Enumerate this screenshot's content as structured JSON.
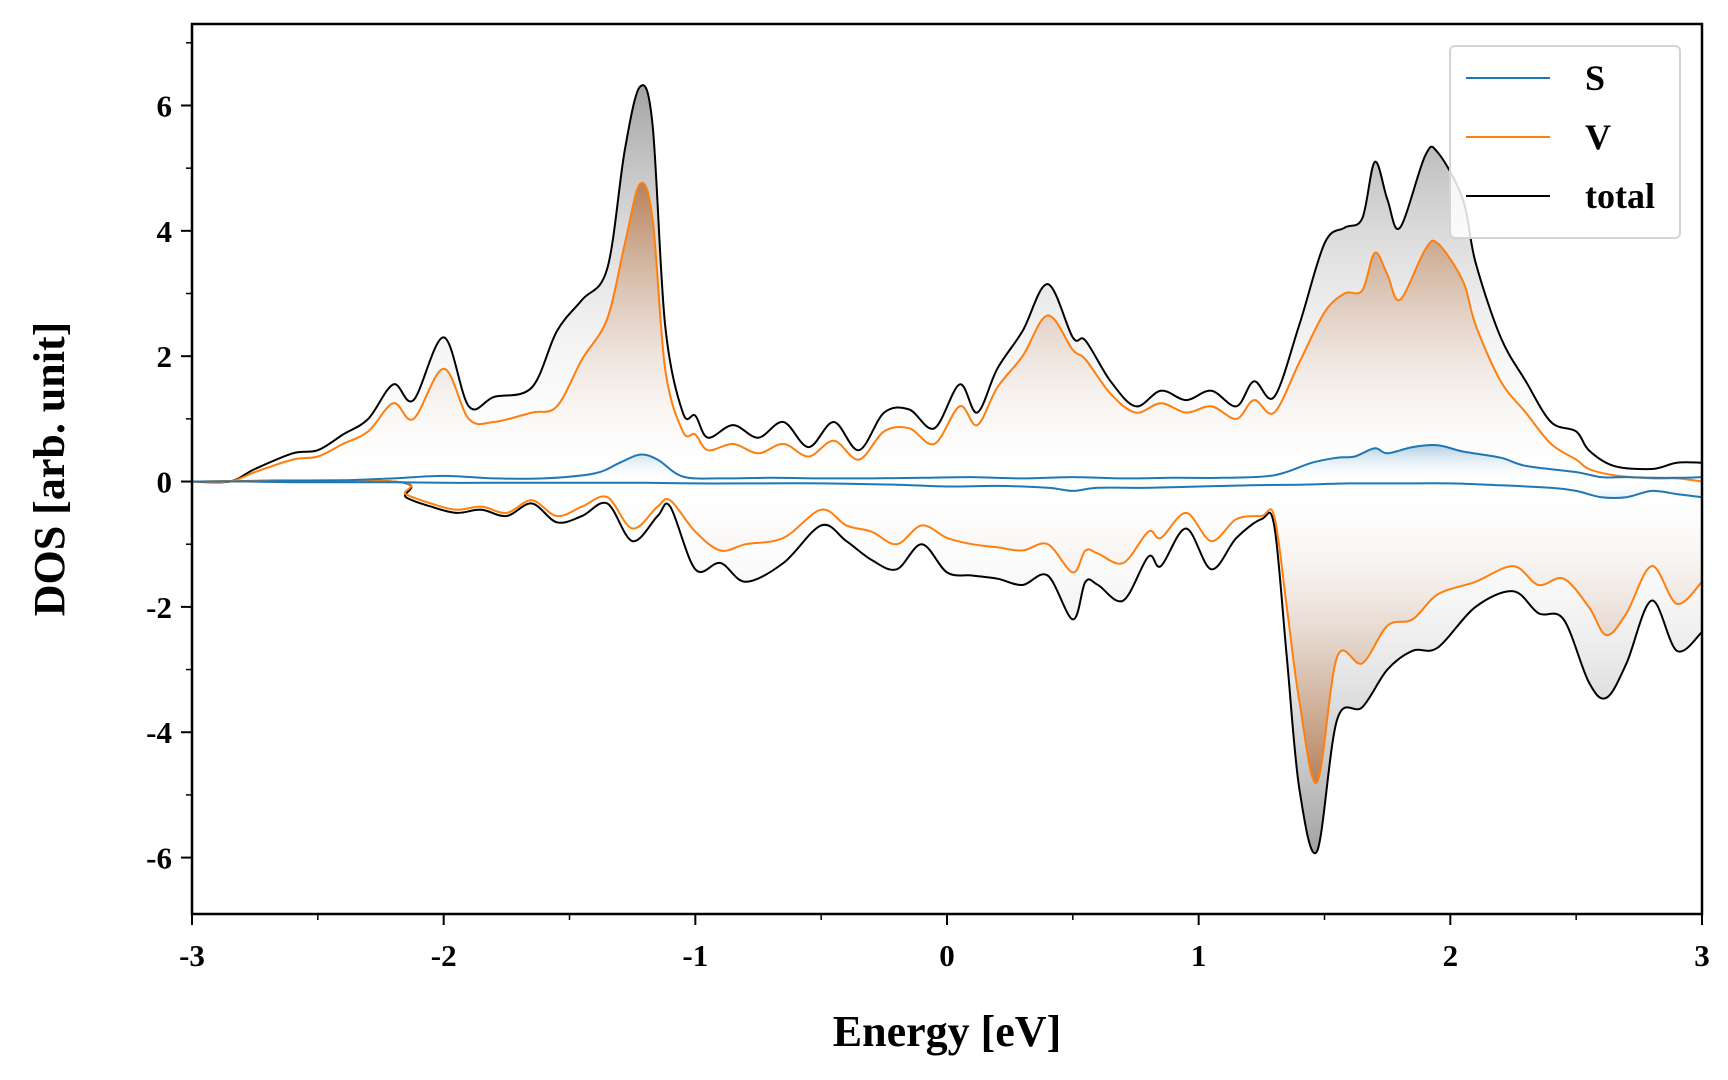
{
  "chart_data": {
    "type": "line",
    "title": "",
    "xlabel": "Energy [eV]",
    "ylabel": "DOS [arb. unit]",
    "xlim": [
      -3,
      3
    ],
    "ylim": [
      -6.9,
      7.3
    ],
    "xticks": [
      -3,
      -2,
      -1,
      0,
      1,
      2,
      3
    ],
    "xtick_labels": [
      "-3",
      "-2",
      "-1",
      "0",
      "1",
      "2",
      "3"
    ],
    "yticks": [
      -6,
      -4,
      -2,
      0,
      2,
      4,
      6
    ],
    "ytick_labels": [
      "-6",
      "-4",
      "-2",
      "0",
      "2",
      "4",
      "6"
    ],
    "grid": false,
    "legend_position": "top-right",
    "colors": {
      "S": "#1f77b4",
      "V": "#ff7f0e",
      "total": "#000000",
      "fill_total": "#9a9a9a",
      "fill_V": "#b57648"
    },
    "series": [
      {
        "name": "S",
        "spin_up": {
          "x": [
            -3.0,
            -2.8,
            -2.6,
            -2.4,
            -2.2,
            -2.0,
            -1.8,
            -1.6,
            -1.4,
            -1.3,
            -1.22,
            -1.15,
            -1.05,
            -0.9,
            -0.7,
            -0.5,
            -0.3,
            -0.1,
            0.1,
            0.3,
            0.5,
            0.7,
            0.9,
            1.1,
            1.3,
            1.45,
            1.55,
            1.62,
            1.7,
            1.75,
            1.85,
            1.95,
            2.05,
            2.2,
            2.3,
            2.5,
            2.6,
            2.7,
            2.8,
            2.9,
            3.0
          ],
          "y": [
            0.0,
            0.0,
            0.01,
            0.02,
            0.05,
            0.09,
            0.05,
            0.05,
            0.13,
            0.3,
            0.43,
            0.35,
            0.08,
            0.05,
            0.06,
            0.05,
            0.05,
            0.06,
            0.07,
            0.05,
            0.07,
            0.05,
            0.06,
            0.06,
            0.1,
            0.3,
            0.38,
            0.4,
            0.53,
            0.45,
            0.55,
            0.58,
            0.48,
            0.38,
            0.25,
            0.15,
            0.07,
            0.07,
            0.06,
            0.06,
            0.07
          ]
        },
        "spin_down": {
          "x": [
            -3.0,
            -2.8,
            -2.6,
            -2.4,
            -2.2,
            -2.0,
            -1.8,
            -1.5,
            -1.2,
            -1.0,
            -0.8,
            -0.5,
            -0.2,
            0.0,
            0.2,
            0.4,
            0.5,
            0.6,
            0.8,
            1.0,
            1.2,
            1.4,
            1.6,
            1.8,
            2.0,
            2.2,
            2.4,
            2.5,
            2.6,
            2.7,
            2.8,
            2.9,
            3.0
          ],
          "y": [
            0.0,
            0.0,
            -0.01,
            -0.01,
            -0.01,
            -0.02,
            -0.02,
            -0.02,
            -0.02,
            -0.03,
            -0.03,
            -0.03,
            -0.05,
            -0.08,
            -0.07,
            -0.1,
            -0.15,
            -0.1,
            -0.1,
            -0.08,
            -0.06,
            -0.05,
            -0.03,
            -0.03,
            -0.03,
            -0.06,
            -0.1,
            -0.15,
            -0.25,
            -0.25,
            -0.15,
            -0.2,
            -0.25
          ]
        }
      },
      {
        "name": "V",
        "spin_up": {
          "x": [
            -3.0,
            -2.85,
            -2.75,
            -2.6,
            -2.5,
            -2.4,
            -2.3,
            -2.2,
            -2.12,
            -2.0,
            -1.9,
            -1.8,
            -1.65,
            -1.55,
            -1.45,
            -1.35,
            -1.28,
            -1.22,
            -1.17,
            -1.12,
            -1.05,
            -1.0,
            -0.95,
            -0.85,
            -0.75,
            -0.65,
            -0.55,
            -0.45,
            -0.35,
            -0.25,
            -0.15,
            -0.05,
            0.05,
            0.12,
            0.2,
            0.3,
            0.4,
            0.5,
            0.55,
            0.65,
            0.75,
            0.85,
            0.95,
            1.05,
            1.15,
            1.22,
            1.3,
            1.4,
            1.5,
            1.58,
            1.65,
            1.7,
            1.75,
            1.8,
            1.9,
            1.95,
            2.05,
            2.1,
            2.2,
            2.3,
            2.4,
            2.5,
            2.55,
            2.65,
            2.8,
            2.9,
            3.0
          ],
          "y": [
            0.0,
            0.0,
            0.15,
            0.35,
            0.4,
            0.6,
            0.8,
            1.25,
            1.0,
            1.8,
            1.0,
            0.95,
            1.1,
            1.2,
            1.95,
            2.6,
            3.8,
            4.75,
            4.2,
            1.8,
            0.8,
            0.75,
            0.5,
            0.6,
            0.45,
            0.6,
            0.4,
            0.65,
            0.35,
            0.8,
            0.85,
            0.6,
            1.2,
            0.9,
            1.5,
            2.0,
            2.65,
            2.1,
            1.95,
            1.4,
            1.1,
            1.25,
            1.1,
            1.2,
            1.0,
            1.3,
            1.1,
            1.9,
            2.7,
            3.0,
            3.05,
            3.65,
            3.3,
            2.9,
            3.7,
            3.8,
            3.2,
            2.5,
            1.6,
            1.1,
            0.6,
            0.35,
            0.2,
            0.1,
            0.05,
            0.05,
            0.0
          ]
        },
        "spin_down": {
          "x": [
            -3.0,
            -2.2,
            -2.15,
            -2.05,
            -1.95,
            -1.85,
            -1.75,
            -1.65,
            -1.55,
            -1.45,
            -1.35,
            -1.25,
            -1.15,
            -1.1,
            -1.0,
            -0.9,
            -0.8,
            -0.65,
            -0.5,
            -0.4,
            -0.3,
            -0.2,
            -0.1,
            0.0,
            0.1,
            0.2,
            0.3,
            0.4,
            0.5,
            0.55,
            0.6,
            0.7,
            0.8,
            0.85,
            0.95,
            1.05,
            1.15,
            1.25,
            1.3,
            1.35,
            1.4,
            1.47,
            1.55,
            1.65,
            1.75,
            1.85,
            1.95,
            2.1,
            2.25,
            2.35,
            2.45,
            2.55,
            2.62,
            2.7,
            2.8,
            2.9,
            3.0
          ],
          "y": [
            0.0,
            0.0,
            -0.2,
            -0.35,
            -0.45,
            -0.4,
            -0.5,
            -0.3,
            -0.55,
            -0.4,
            -0.25,
            -0.75,
            -0.4,
            -0.3,
            -0.8,
            -1.1,
            -1.0,
            -0.9,
            -0.45,
            -0.7,
            -0.8,
            -1.0,
            -0.7,
            -0.9,
            -1.0,
            -1.05,
            -1.1,
            -1.0,
            -1.45,
            -1.1,
            -1.15,
            -1.3,
            -0.8,
            -0.9,
            -0.5,
            -0.95,
            -0.6,
            -0.55,
            -0.55,
            -2.0,
            -3.5,
            -4.8,
            -2.8,
            -2.9,
            -2.3,
            -2.2,
            -1.8,
            -1.6,
            -1.35,
            -1.65,
            -1.55,
            -2.0,
            -2.45,
            -2.1,
            -1.35,
            -1.95,
            -1.6
          ]
        }
      },
      {
        "name": "total",
        "spin_up": {
          "x": [
            -3.0,
            -2.85,
            -2.75,
            -2.6,
            -2.5,
            -2.4,
            -2.3,
            -2.2,
            -2.12,
            -2.0,
            -1.9,
            -1.8,
            -1.65,
            -1.55,
            -1.45,
            -1.35,
            -1.28,
            -1.22,
            -1.17,
            -1.12,
            -1.05,
            -1.0,
            -0.95,
            -0.85,
            -0.75,
            -0.65,
            -0.55,
            -0.45,
            -0.35,
            -0.25,
            -0.15,
            -0.05,
            0.05,
            0.12,
            0.2,
            0.3,
            0.4,
            0.5,
            0.55,
            0.65,
            0.75,
            0.85,
            0.95,
            1.05,
            1.15,
            1.22,
            1.3,
            1.4,
            1.5,
            1.58,
            1.65,
            1.7,
            1.75,
            1.8,
            1.9,
            1.95,
            2.05,
            2.1,
            2.2,
            2.3,
            2.4,
            2.5,
            2.55,
            2.65,
            2.8,
            2.9,
            3.0
          ],
          "y": [
            0.0,
            0.0,
            0.2,
            0.45,
            0.5,
            0.75,
            1.0,
            1.55,
            1.3,
            2.3,
            1.2,
            1.35,
            1.5,
            2.4,
            2.9,
            3.4,
            5.3,
            6.3,
            5.7,
            2.5,
            1.1,
            1.05,
            0.7,
            0.9,
            0.7,
            0.95,
            0.55,
            0.95,
            0.5,
            1.1,
            1.15,
            0.85,
            1.55,
            1.1,
            1.8,
            2.4,
            3.15,
            2.3,
            2.25,
            1.6,
            1.2,
            1.45,
            1.3,
            1.45,
            1.2,
            1.6,
            1.35,
            2.5,
            3.8,
            4.05,
            4.2,
            5.1,
            4.5,
            4.05,
            5.2,
            5.25,
            4.5,
            3.5,
            2.3,
            1.6,
            0.95,
            0.8,
            0.5,
            0.25,
            0.2,
            0.3,
            0.3
          ]
        },
        "spin_down": {
          "x": [
            -3.0,
            -2.2,
            -2.15,
            -2.05,
            -1.95,
            -1.85,
            -1.75,
            -1.65,
            -1.55,
            -1.45,
            -1.35,
            -1.25,
            -1.15,
            -1.1,
            -1.0,
            -0.9,
            -0.8,
            -0.65,
            -0.5,
            -0.4,
            -0.3,
            -0.2,
            -0.1,
            0.0,
            0.1,
            0.2,
            0.3,
            0.4,
            0.5,
            0.55,
            0.6,
            0.7,
            0.8,
            0.85,
            0.95,
            1.05,
            1.15,
            1.25,
            1.3,
            1.35,
            1.4,
            1.47,
            1.55,
            1.65,
            1.75,
            1.85,
            1.95,
            2.1,
            2.25,
            2.35,
            2.45,
            2.55,
            2.62,
            2.7,
            2.8,
            2.9,
            3.0
          ],
          "y": [
            0.0,
            0.0,
            -0.25,
            -0.4,
            -0.5,
            -0.45,
            -0.55,
            -0.35,
            -0.65,
            -0.55,
            -0.35,
            -0.95,
            -0.55,
            -0.4,
            -1.4,
            -1.3,
            -1.6,
            -1.3,
            -0.7,
            -0.95,
            -1.25,
            -1.4,
            -1.0,
            -1.45,
            -1.5,
            -1.55,
            -1.65,
            -1.5,
            -2.2,
            -1.6,
            -1.65,
            -1.9,
            -1.2,
            -1.35,
            -0.75,
            -1.4,
            -0.9,
            -0.6,
            -0.7,
            -2.8,
            -4.9,
            -5.9,
            -3.8,
            -3.6,
            -3.0,
            -2.7,
            -2.65,
            -2.0,
            -1.75,
            -2.1,
            -2.2,
            -3.2,
            -3.45,
            -2.9,
            -1.9,
            -2.7,
            -2.4
          ]
        }
      }
    ]
  }
}
